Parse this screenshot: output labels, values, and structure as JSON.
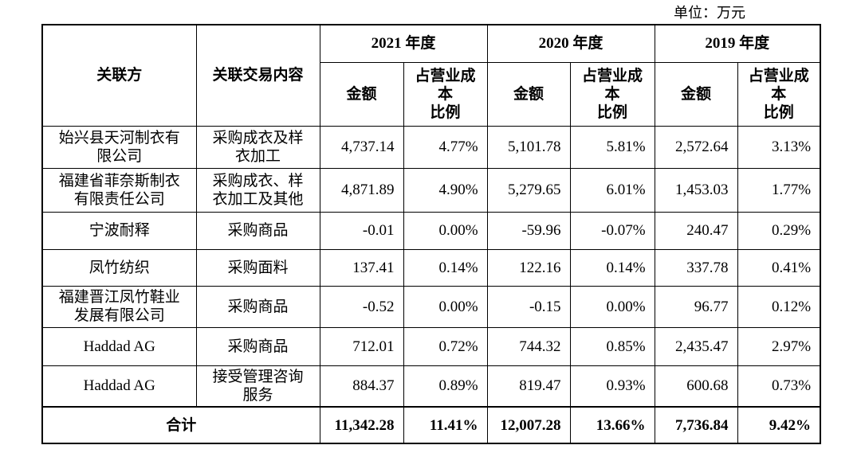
{
  "unit": "单位：万元",
  "table": {
    "header": {
      "party": "关联方",
      "content": "关联交易内容",
      "years": [
        "2021 年度",
        "2020 年度",
        "2019 年度"
      ],
      "amount": "金额",
      "ratio": [
        "占营业成",
        "本",
        "比例"
      ]
    },
    "rows": [
      [
        "始兴县天河制衣有限公司",
        "采购成衣及样衣加工",
        "4,737.14",
        "4.77%",
        "5,101.78",
        "5.81%",
        "2,572.64",
        "3.13%"
      ],
      [
        "福建省菲奈斯制衣有限责任公司",
        "采购成衣、样衣加工及其他",
        "4,871.89",
        "4.90%",
        "5,279.65",
        "6.01%",
        "1,453.03",
        "1.77%"
      ],
      [
        "宁波耐释",
        "采购商品",
        "-0.01",
        "0.00%",
        "-59.96",
        "-0.07%",
        "240.47",
        "0.29%"
      ],
      [
        "凤竹纺织",
        "采购面料",
        "137.41",
        "0.14%",
        "122.16",
        "0.14%",
        "337.78",
        "0.41%"
      ],
      [
        "福建晋江凤竹鞋业发展有限公司",
        "采购商品",
        "-0.52",
        "0.00%",
        "-0.15",
        "0.00%",
        "96.77",
        "0.12%"
      ],
      [
        "Haddad AG",
        "采购商品",
        "712.01",
        "0.72%",
        "744.32",
        "0.85%",
        "2,435.47",
        "2.97%"
      ],
      [
        "Haddad AG",
        "接受管理咨询服务",
        "884.37",
        "0.89%",
        "819.47",
        "0.93%",
        "600.68",
        "0.73%"
      ]
    ],
    "total": {
      "label": "合计",
      "values": [
        "11,342.28",
        "11.41%",
        "12,007.28",
        "13.66%",
        "7,736.84",
        "9.42%"
      ]
    }
  }
}
